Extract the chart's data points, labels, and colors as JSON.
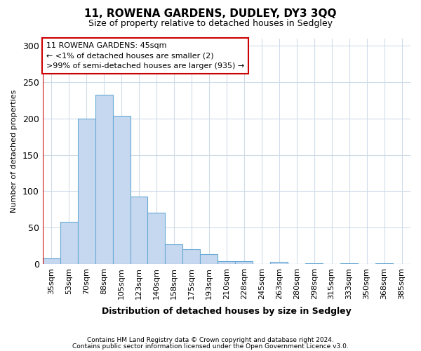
{
  "title": "11, ROWENA GARDENS, DUDLEY, DY3 3QQ",
  "subtitle": "Size of property relative to detached houses in Sedgley",
  "xlabel": "Distribution of detached houses by size in Sedgley",
  "ylabel": "Number of detached properties",
  "categories": [
    "35sqm",
    "53sqm",
    "70sqm",
    "88sqm",
    "105sqm",
    "123sqm",
    "140sqm",
    "158sqm",
    "175sqm",
    "193sqm",
    "210sqm",
    "228sqm",
    "245sqm",
    "263sqm",
    "280sqm",
    "298sqm",
    "315sqm",
    "333sqm",
    "350sqm",
    "368sqm",
    "385sqm"
  ],
  "values": [
    8,
    58,
    200,
    233,
    204,
    93,
    70,
    27,
    20,
    13,
    4,
    4,
    0,
    3,
    0,
    1,
    0,
    1,
    0,
    1,
    0
  ],
  "bar_color": "#c5d8f0",
  "bar_edge_color": "#6aaad4",
  "marker_color": "#cc0000",
  "annotation_title": "11 ROWENA GARDENS: 45sqm",
  "annotation_line1": "← <1% of detached houses are smaller (2)",
  "annotation_line2": ">99% of semi-detached houses are larger (935) →",
  "annotation_box_color": "#ffffff",
  "annotation_box_edge": "#cc0000",
  "ylim": [
    0,
    310
  ],
  "yticks": [
    0,
    50,
    100,
    150,
    200,
    250,
    300
  ],
  "background_color": "#ffffff",
  "grid_color": "#d0dcea",
  "footer1": "Contains HM Land Registry data © Crown copyright and database right 2024.",
  "footer2": "Contains public sector information licensed under the Open Government Licence v3.0."
}
